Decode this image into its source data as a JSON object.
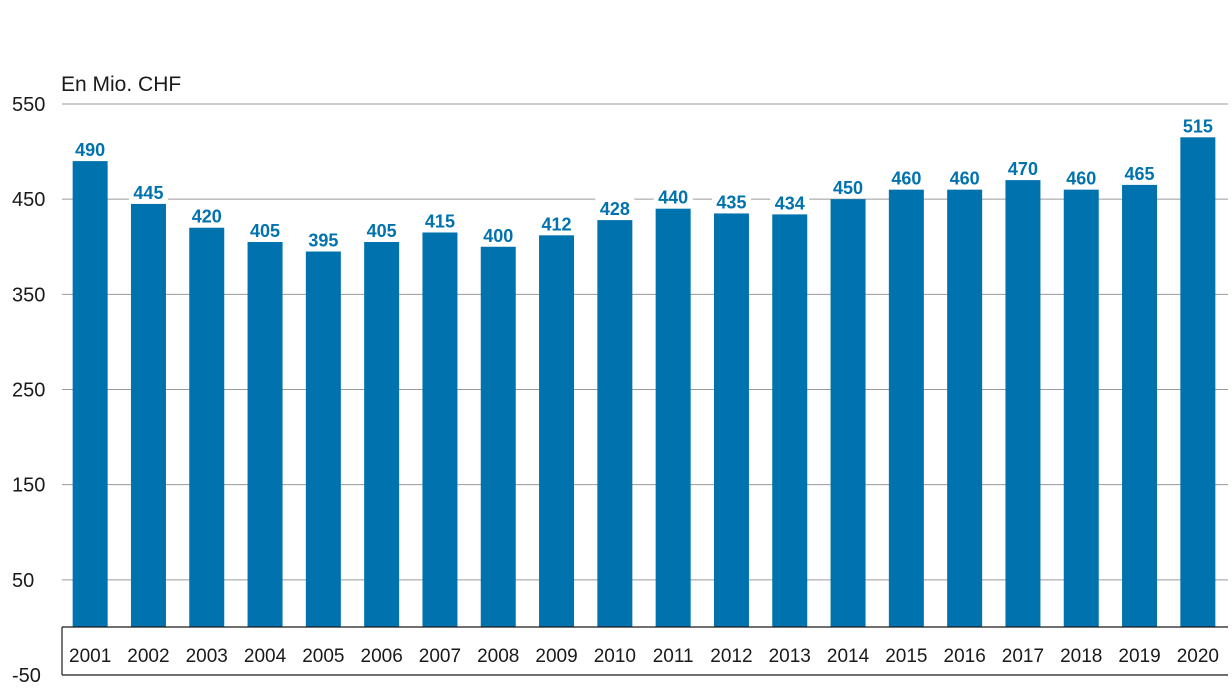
{
  "chart_data": {
    "type": "bar",
    "title": "",
    "ylabel": "En Mio. CHF",
    "xlabel": "",
    "categories": [
      "2001",
      "2002",
      "2003",
      "2004",
      "2005",
      "2006",
      "2007",
      "2008",
      "2009",
      "2010",
      "2011",
      "2012",
      "2013",
      "2014",
      "2015",
      "2016",
      "2017",
      "2018",
      "2019",
      "2020"
    ],
    "values": [
      490,
      445,
      420,
      405,
      395,
      405,
      415,
      400,
      412,
      428,
      440,
      435,
      434,
      450,
      460,
      460,
      470,
      460,
      465,
      515
    ],
    "ylim": [
      -50,
      550
    ],
    "yticks": [
      550,
      450,
      350,
      250,
      150,
      50,
      -50
    ],
    "grid": true,
    "legend": "none",
    "colors": {
      "bar": "#0072ae",
      "label": "#0072ae"
    }
  }
}
